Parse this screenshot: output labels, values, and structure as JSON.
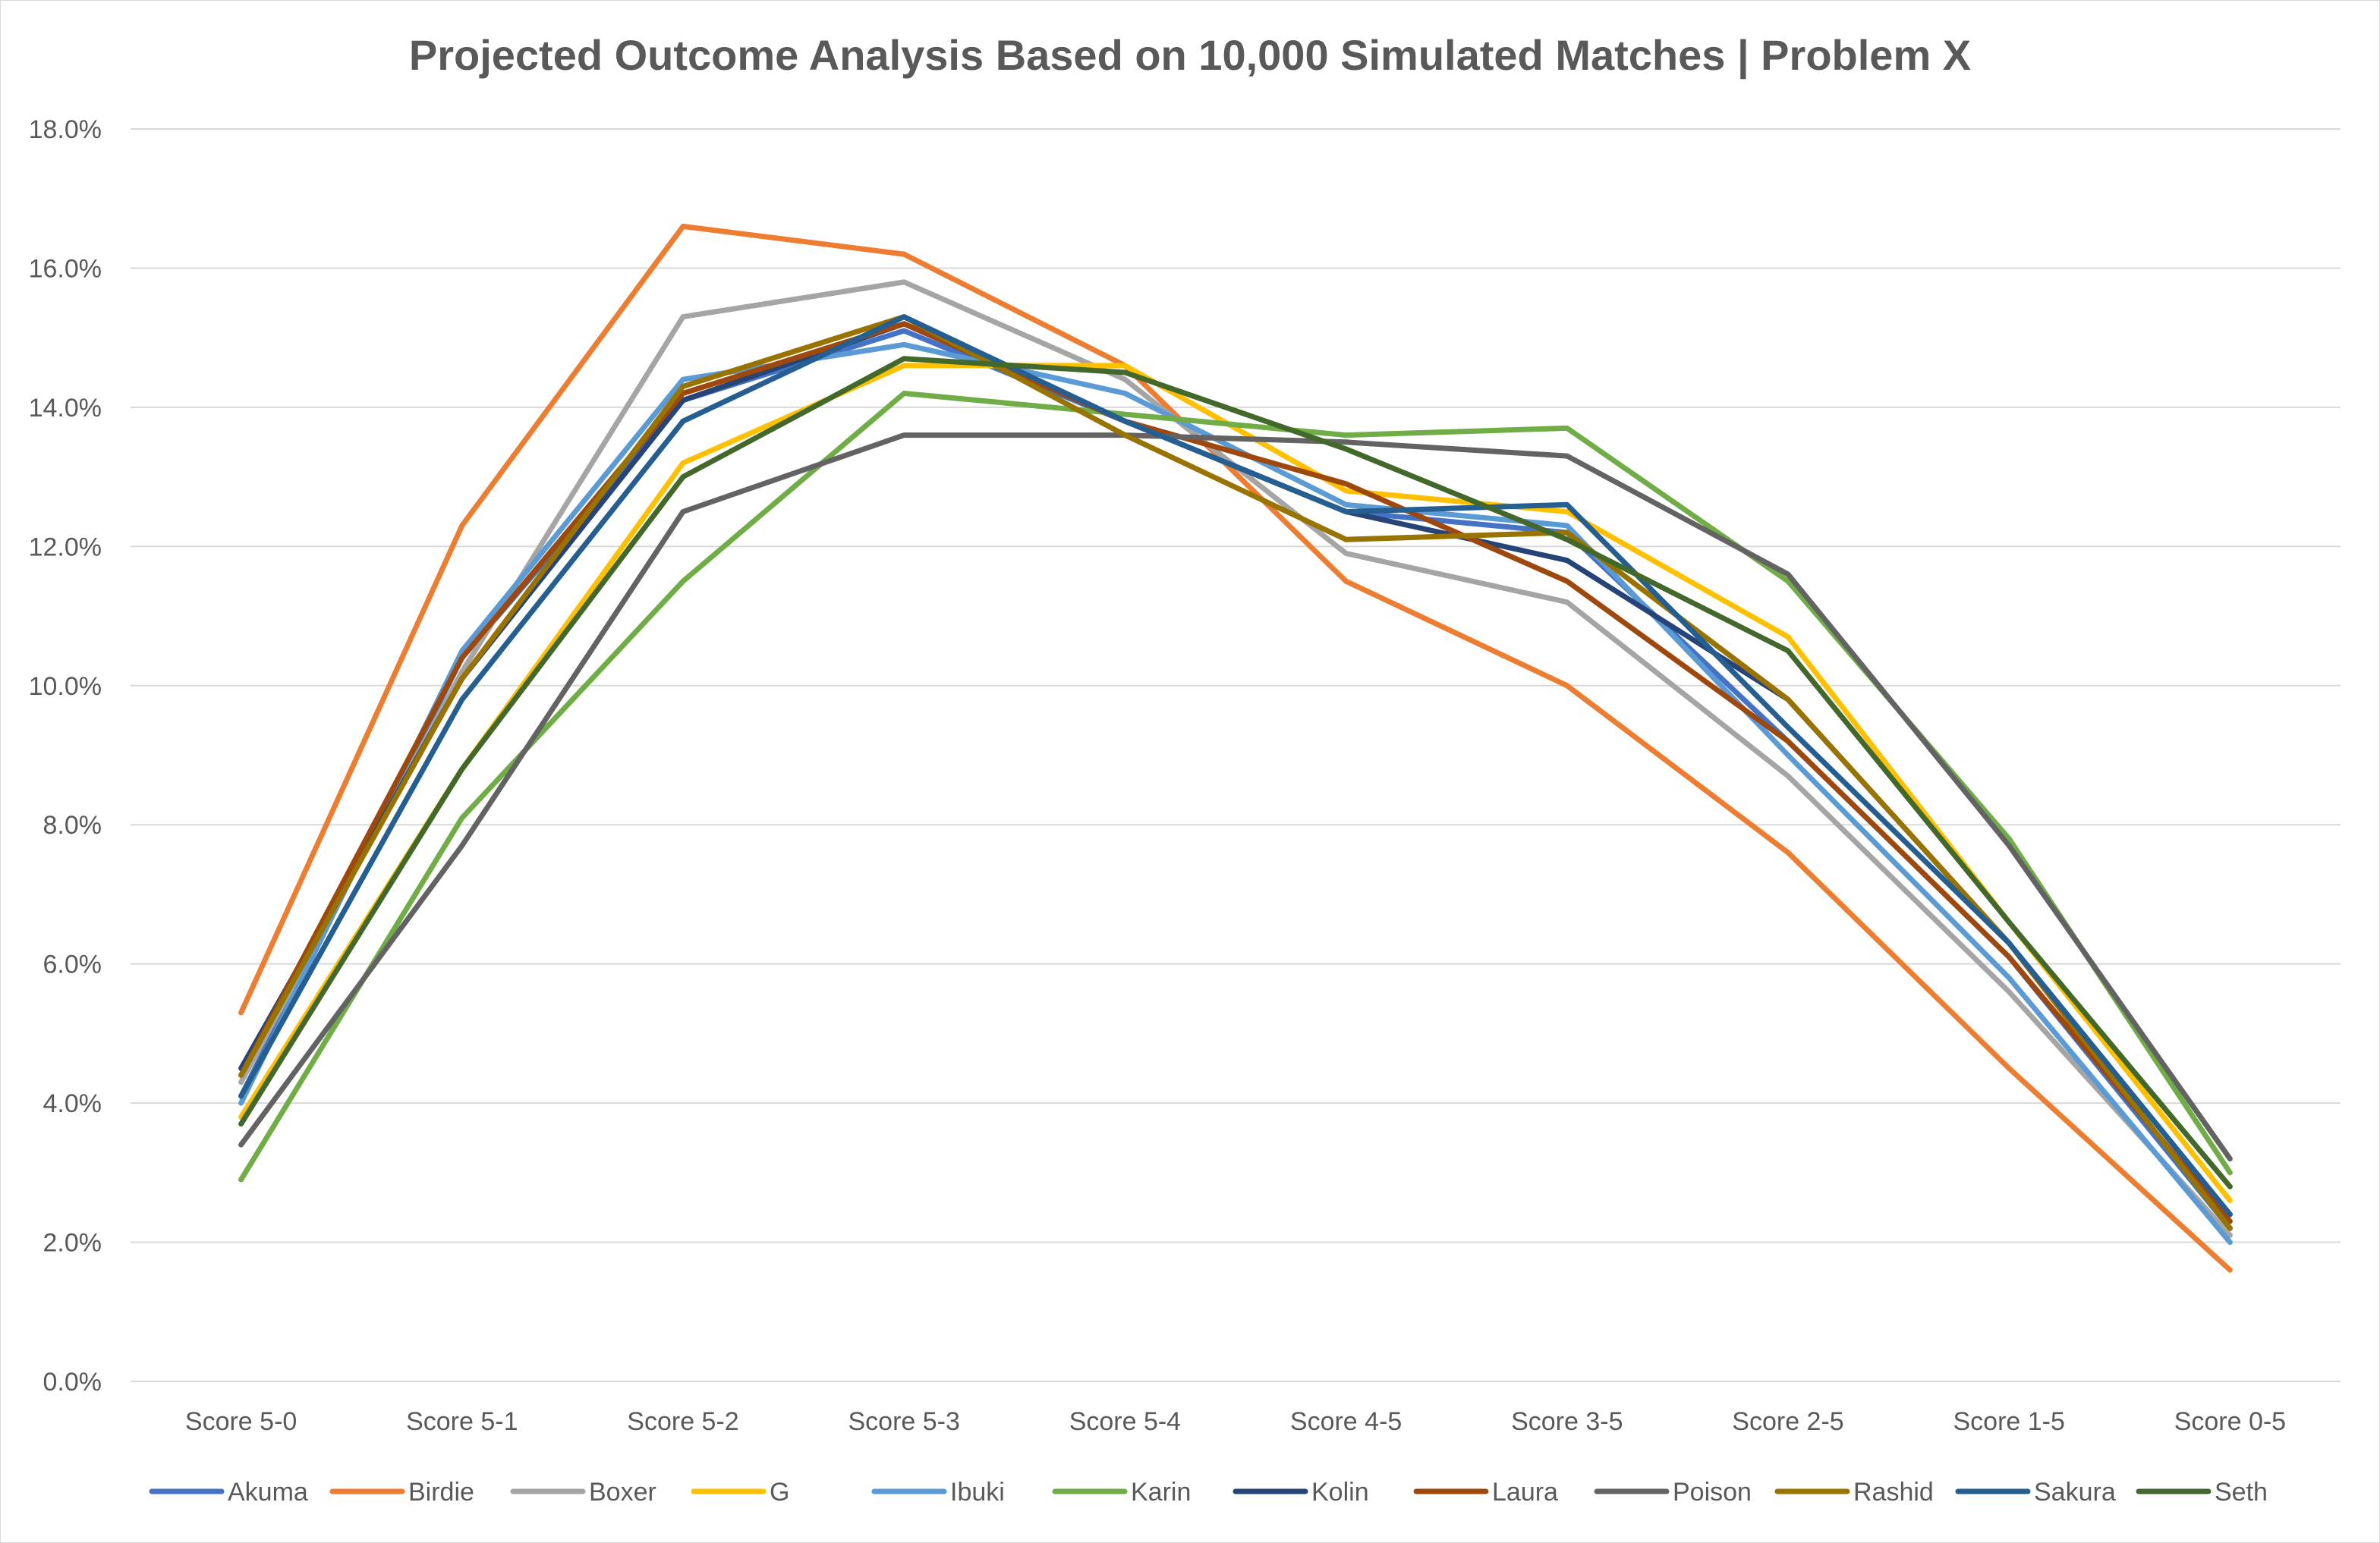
{
  "chart_data": {
    "type": "line",
    "title": "Projected Outcome Analysis Based on 10,000 Simulated Matches | Problem X",
    "xlabel": "",
    "ylabel": "",
    "categories": [
      "Score 5-0",
      "Score 5-1",
      "Score 5-2",
      "Score 5-3",
      "Score 5-4",
      "Score 4-5",
      "Score 3-5",
      "Score 2-5",
      "Score 1-5",
      "Score 0-5"
    ],
    "ylim": [
      0,
      18
    ],
    "yticks": [
      0,
      2,
      4,
      6,
      8,
      10,
      12,
      14,
      16,
      18
    ],
    "ytick_labels": [
      "0.0%",
      "2.0%",
      "4.0%",
      "6.0%",
      "8.0%",
      "10.0%",
      "12.0%",
      "14.0%",
      "16.0%",
      "18.0%"
    ],
    "grid": true,
    "legend_position": "bottom",
    "series": [
      {
        "name": "Akuma",
        "color": "#4472C4",
        "values": [
          4.1,
          10.4,
          14.1,
          15.1,
          13.8,
          12.5,
          12.2,
          9.2,
          6.1,
          2.2
        ]
      },
      {
        "name": "Birdie",
        "color": "#ED7D31",
        "values": [
          5.3,
          12.3,
          16.6,
          16.2,
          14.6,
          11.5,
          10.0,
          7.6,
          4.5,
          1.6
        ]
      },
      {
        "name": "Boxer",
        "color": "#A5A5A5",
        "values": [
          4.3,
          10.2,
          15.3,
          15.8,
          14.4,
          11.9,
          11.2,
          8.7,
          5.6,
          2.1
        ]
      },
      {
        "name": "G",
        "color": "#FFC000",
        "values": [
          3.8,
          8.8,
          13.2,
          14.6,
          14.6,
          12.8,
          12.5,
          10.7,
          6.6,
          2.6
        ]
      },
      {
        "name": "Ibuki",
        "color": "#5B9BD5",
        "values": [
          4.0,
          10.5,
          14.4,
          14.9,
          14.2,
          12.6,
          12.3,
          9.0,
          5.8,
          2.0
        ]
      },
      {
        "name": "Karin",
        "color": "#70AD47",
        "values": [
          2.9,
          8.1,
          11.5,
          14.2,
          13.9,
          13.6,
          13.7,
          11.5,
          7.8,
          3.0
        ]
      },
      {
        "name": "Kolin",
        "color": "#264478",
        "values": [
          4.5,
          10.1,
          14.1,
          15.2,
          13.8,
          12.5,
          11.8,
          9.8,
          6.3,
          2.4
        ]
      },
      {
        "name": "Laura",
        "color": "#9E480E",
        "values": [
          4.4,
          10.4,
          14.2,
          15.2,
          13.8,
          12.9,
          11.5,
          9.2,
          6.1,
          2.3
        ]
      },
      {
        "name": "Poison",
        "color": "#636363",
        "values": [
          3.4,
          7.7,
          12.5,
          13.6,
          13.6,
          13.5,
          13.3,
          11.6,
          7.7,
          3.2
        ]
      },
      {
        "name": "Rashid",
        "color": "#997300",
        "values": [
          4.4,
          10.1,
          14.3,
          15.3,
          13.6,
          12.1,
          12.2,
          9.8,
          6.3,
          2.2
        ]
      },
      {
        "name": "Sakura",
        "color": "#255E91",
        "values": [
          4.1,
          9.8,
          13.8,
          15.3,
          13.8,
          12.5,
          12.6,
          9.4,
          6.3,
          2.4
        ]
      },
      {
        "name": "Seth",
        "color": "#43682B",
        "values": [
          3.7,
          8.8,
          13.0,
          14.7,
          14.5,
          13.4,
          12.1,
          10.5,
          6.6,
          2.8
        ]
      }
    ]
  }
}
